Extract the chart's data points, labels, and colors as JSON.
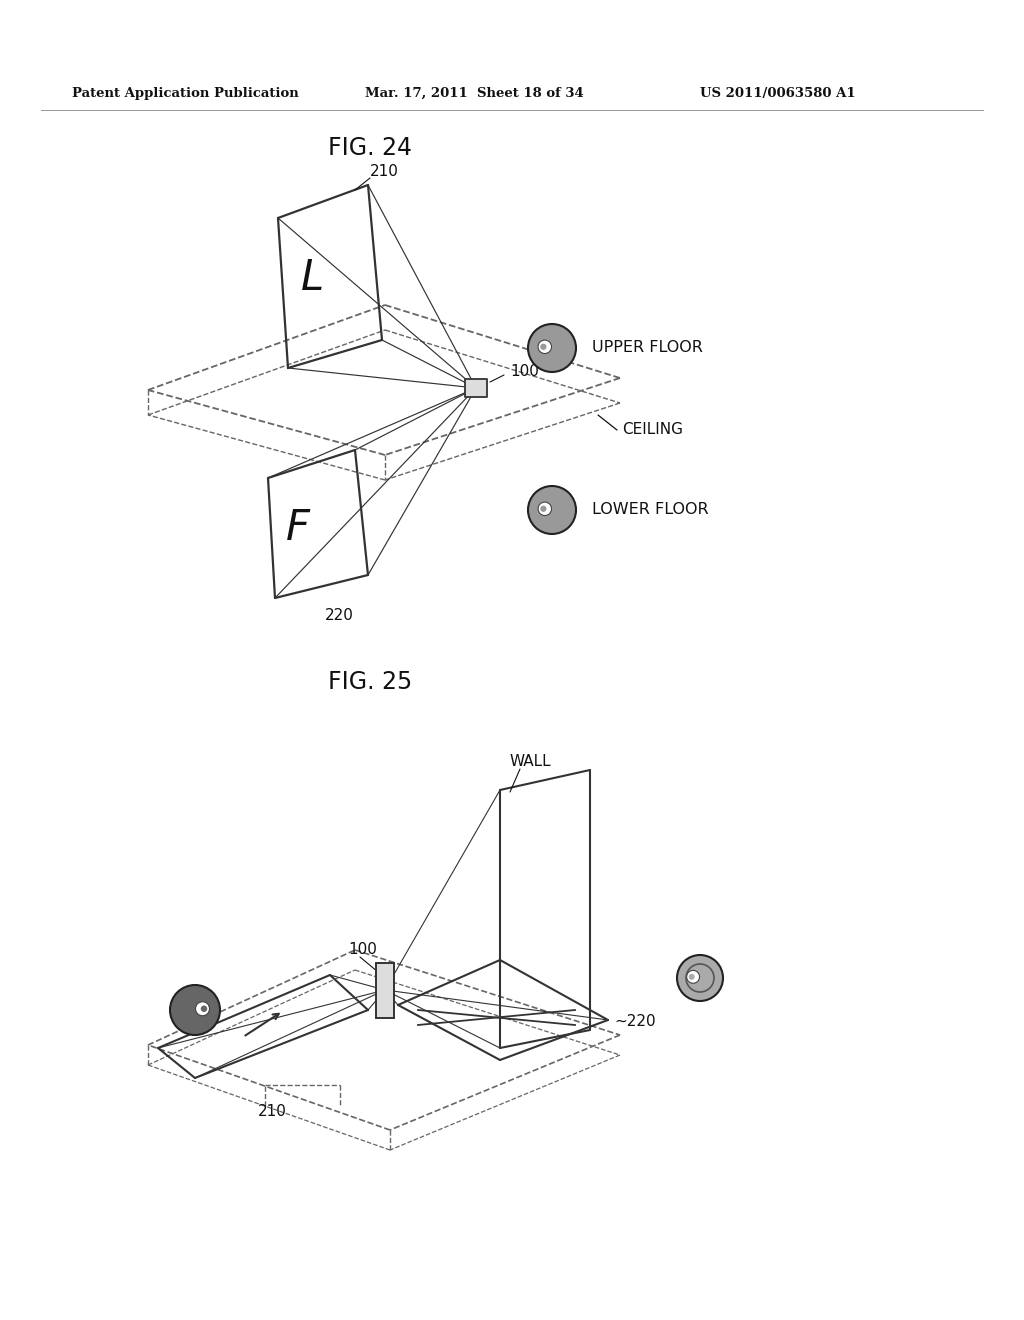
{
  "bg_color": "#ffffff",
  "header_left": "Patent Application Publication",
  "header_mid": "Mar. 17, 2011  Sheet 18 of 34",
  "header_right": "US 2011/0063580 A1",
  "fig24_title": "FIG. 24",
  "fig25_title": "FIG. 25",
  "line_color": "#333333",
  "dashed_color": "#666666",
  "text_color": "#111111"
}
